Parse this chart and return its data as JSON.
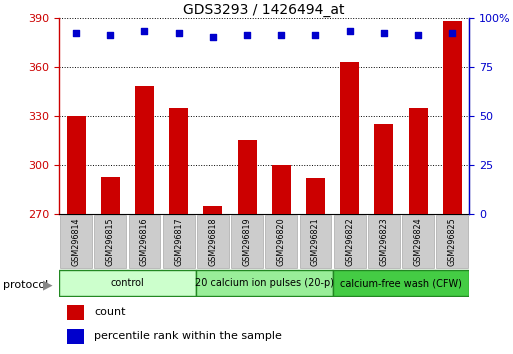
{
  "title": "GDS3293 / 1426494_at",
  "categories": [
    "GSM296814",
    "GSM296815",
    "GSM296816",
    "GSM296817",
    "GSM296818",
    "GSM296819",
    "GSM296820",
    "GSM296821",
    "GSM296822",
    "GSM296823",
    "GSM296824",
    "GSM296825"
  ],
  "bar_values": [
    330,
    293,
    348,
    335,
    275,
    315,
    300,
    292,
    363,
    325,
    335,
    388
  ],
  "percentile_values": [
    92,
    91,
    93,
    92,
    90,
    91,
    91,
    91,
    93,
    92,
    91,
    92
  ],
  "bar_color": "#cc0000",
  "dot_color": "#0000cc",
  "ylim_left": [
    270,
    390
  ],
  "ylim_right": [
    0,
    100
  ],
  "yticks_left": [
    270,
    300,
    330,
    360,
    390
  ],
  "yticks_right": [
    0,
    25,
    50,
    75,
    100
  ],
  "ytick_labels_right": [
    "0",
    "25",
    "50",
    "75",
    "100%"
  ],
  "protocol_groups": [
    {
      "label": "control",
      "indices": [
        0,
        1,
        2,
        3
      ],
      "color": "#ccffcc"
    },
    {
      "label": "20 calcium ion pulses (20-p)",
      "indices": [
        4,
        5,
        6,
        7
      ],
      "color": "#99ee99"
    },
    {
      "label": "calcium-free wash (CFW)",
      "indices": [
        8,
        9,
        10,
        11
      ],
      "color": "#44cc44"
    }
  ],
  "protocol_label": "protocol",
  "tick_box_color": "#cccccc",
  "tick_box_edge": "#aaaaaa",
  "legend_items": [
    {
      "label": "count",
      "color": "#cc0000"
    },
    {
      "label": "percentile rank within the sample",
      "color": "#0000cc"
    }
  ]
}
